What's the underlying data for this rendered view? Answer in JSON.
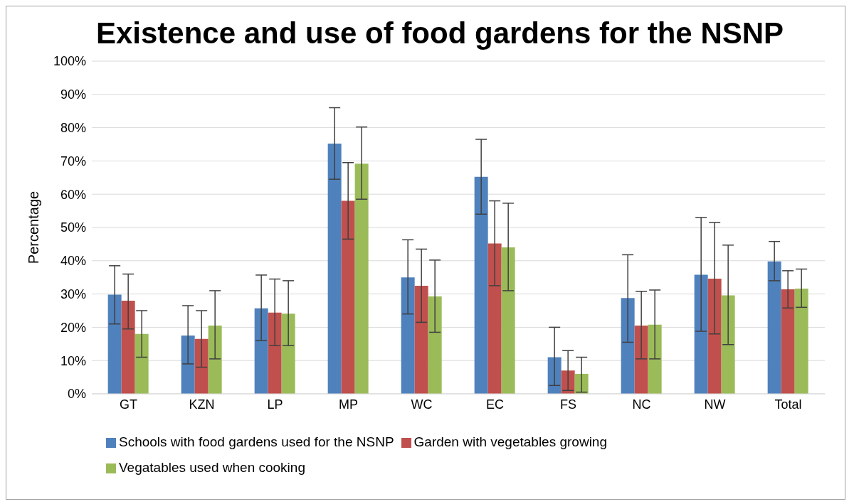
{
  "chart_data": {
    "type": "bar",
    "title": "Existence and use of food gardens for the NSNP",
    "ylabel": "Percentage",
    "categories": [
      "GT",
      "KZN",
      "LP",
      "MP",
      "WC",
      "EC",
      "FS",
      "NC",
      "NW",
      "Total"
    ],
    "series": [
      {
        "name": "Schools with food gardens used for the NSNP",
        "color": "#4f81bd",
        "values": [
          29.8,
          17.5,
          25.7,
          75.2,
          35,
          65.2,
          11,
          28.8,
          35.8,
          39.8
        ],
        "errors": [
          [
            21,
            38.5
          ],
          [
            9,
            26.5
          ],
          [
            16,
            35.7
          ],
          [
            64.5,
            86
          ],
          [
            24,
            46.3
          ],
          [
            54,
            76.5
          ],
          [
            2.5,
            20
          ],
          [
            15.5,
            41.8
          ],
          [
            18.8,
            53
          ],
          [
            34,
            45.8
          ]
        ]
      },
      {
        "name": "Garden with vegetables growing",
        "color": "#c0504d",
        "values": [
          28,
          16.5,
          24.4,
          58,
          32.5,
          45.2,
          7,
          20.5,
          34.6,
          31.4
        ],
        "errors": [
          [
            19.5,
            36
          ],
          [
            8,
            25
          ],
          [
            14.5,
            34.5
          ],
          [
            46.5,
            69.5
          ],
          [
            21.5,
            43.5
          ],
          [
            32.5,
            58
          ],
          [
            1,
            13
          ],
          [
            10.5,
            30.8
          ],
          [
            18,
            51.5
          ],
          [
            25.8,
            37
          ]
        ]
      },
      {
        "name": "Vegatables used when cooking",
        "color": "#9bbb59",
        "values": [
          18,
          20.5,
          24.1,
          69.2,
          29.3,
          44,
          6,
          20.8,
          29.6,
          31.6
        ],
        "errors": [
          [
            11,
            25
          ],
          [
            10.5,
            31
          ],
          [
            14.5,
            34
          ],
          [
            58.5,
            80.2
          ],
          [
            18.5,
            40.2
          ],
          [
            31,
            57.3
          ],
          [
            0.5,
            11
          ],
          [
            10.5,
            31.2
          ],
          [
            14.8,
            44.7
          ],
          [
            26,
            37.5
          ]
        ]
      }
    ],
    "ylim": [
      0,
      100
    ],
    "yticks": [
      {
        "value": 0,
        "label": "0%"
      },
      {
        "value": 10,
        "label": "10%"
      },
      {
        "value": 20,
        "label": "20%"
      },
      {
        "value": 30,
        "label": "30%"
      },
      {
        "value": 40,
        "label": "40%"
      },
      {
        "value": 50,
        "label": "50%"
      },
      {
        "value": 60,
        "label": "60%"
      },
      {
        "value": 70,
        "label": "70%"
      },
      {
        "value": 80,
        "label": "80%"
      },
      {
        "value": 90,
        "label": "90%"
      },
      {
        "value": 100,
        "label": "100%"
      }
    ],
    "grid": "y",
    "legend": "bottom"
  }
}
